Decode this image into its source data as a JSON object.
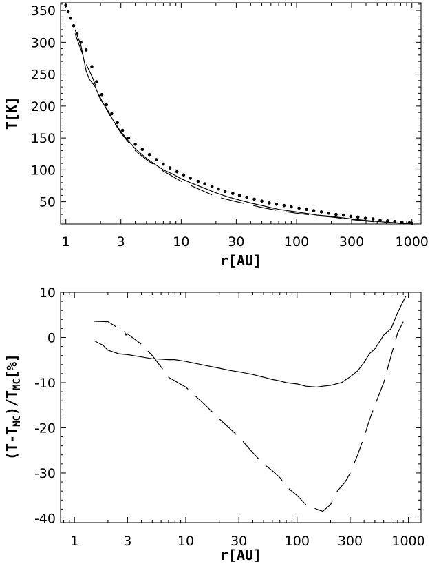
{
  "chart_data": [
    {
      "type": "line",
      "xlabel": "r[AU]",
      "ylabel": "T[K]",
      "xscale": "log",
      "xlim": [
        0.9,
        1200
      ],
      "ylim": [
        15,
        362
      ],
      "xticks": [
        1,
        3,
        10,
        30,
        100,
        300,
        1000
      ],
      "xtick_labels": [
        "1",
        "3",
        "10",
        "30",
        "100",
        "300",
        "1000"
      ],
      "yticks": [
        50,
        100,
        150,
        200,
        250,
        300,
        350
      ],
      "ytick_labels": [
        "50",
        "100",
        "150",
        "200",
        "250",
        "300",
        "350"
      ],
      "grid": false,
      "legend": "none",
      "series": [
        {
          "style": "dotted-markers",
          "x": [
            1.0,
            1.05,
            1.1,
            1.17,
            1.25,
            1.35,
            1.5,
            1.68,
            1.85,
            2.05,
            2.25,
            2.5,
            2.8,
            3.1,
            3.5,
            4.0,
            4.6,
            5.3,
            6.1,
            7.0,
            8.0,
            9.2,
            10.5,
            12,
            14,
            16,
            18.5,
            21,
            24,
            28,
            32,
            37,
            43,
            50,
            58,
            67,
            78,
            90,
            105,
            122,
            141,
            164,
            190,
            220,
            255,
            295,
            340,
            395,
            460,
            530,
            615,
            710,
            820,
            950,
            1000
          ],
          "y": [
            358,
            348,
            338,
            326,
            314,
            300,
            288,
            262,
            238,
            218,
            202,
            188,
            174,
            162,
            150,
            140,
            132,
            124,
            116,
            109,
            103,
            97,
            92,
            87,
            82,
            78,
            74,
            70,
            66,
            63,
            60,
            57,
            54,
            51,
            48,
            46,
            44,
            42,
            40,
            38,
            36,
            34,
            32,
            30,
            29,
            27,
            26,
            24,
            23,
            21,
            20,
            19,
            18,
            17,
            16
          ]
        },
        {
          "style": "solid",
          "x": [
            1.2,
            1.35,
            1.5,
            1.6,
            1.7,
            1.8,
            2.0,
            2.3,
            2.6,
            3.0,
            3.5,
            4.0,
            5.0,
            6.0,
            7.0,
            8.5,
            10,
            12,
            15,
            20,
            25,
            30,
            40,
            50,
            70,
            100,
            150,
            200,
            300,
            500,
            700,
            1000
          ],
          "y": [
            320,
            296,
            255,
            242,
            236,
            230,
            210,
            194,
            176,
            160,
            145,
            133,
            118,
            108,
            100,
            93,
            86,
            80,
            73,
            64,
            58,
            54,
            48,
            44,
            38,
            34,
            29,
            27,
            23,
            19,
            17,
            15
          ]
        },
        {
          "style": "long-dash",
          "x": [
            1.2,
            1.5,
            1.7,
            2.0,
            2.5,
            3.0,
            4.0,
            5.0,
            7.0,
            10,
            15,
            20,
            30,
            50,
            70,
            100,
            150,
            200,
            300,
            500,
            700,
            1000
          ],
          "y": [
            314,
            266,
            245,
            212,
            180,
            158,
            130,
            116,
            98,
            82,
            68,
            58,
            50,
            41,
            36,
            32,
            28,
            26,
            22,
            18,
            17,
            15
          ]
        }
      ]
    },
    {
      "type": "line",
      "xlabel": "r[AU]",
      "ylabel": "(T-T_MC)/T_MC[%]",
      "ylabel_parts": {
        "a": "(T-T",
        "sub1": "MC",
        "b": ")/T",
        "sub2": "MC",
        "c": "[%]"
      },
      "xscale": "log",
      "xlim": [
        0.75,
        1300
      ],
      "ylim": [
        -41,
        10
      ],
      "xticks": [
        1,
        3,
        10,
        30,
        100,
        300,
        1000
      ],
      "xtick_labels": [
        "1",
        "3",
        "10",
        "30",
        "100",
        "300",
        "1000"
      ],
      "yticks": [
        10,
        0,
        -10,
        -20,
        -30,
        -40
      ],
      "ytick_labels": [
        "10",
        "0",
        "-10",
        "-20",
        "-30",
        "-40"
      ],
      "grid": false,
      "legend": "none",
      "series": [
        {
          "style": "solid",
          "x": [
            1.5,
            1.8,
            2.0,
            2.5,
            3.0,
            4.0,
            5.0,
            6.0,
            7.0,
            8.0,
            10,
            12,
            15,
            20,
            25,
            30,
            40,
            50,
            60,
            70,
            80,
            100,
            120,
            150,
            170,
            200,
            250,
            300,
            350,
            400,
            450,
            500,
            600,
            700,
            800,
            950
          ],
          "y": [
            -0.7,
            -1.7,
            -2.8,
            -3.6,
            -3.8,
            -4.3,
            -4.7,
            -4.8,
            -4.9,
            -4.9,
            -5.3,
            -5.7,
            -6.2,
            -6.8,
            -7.3,
            -7.6,
            -8.2,
            -8.8,
            -9.3,
            -9.6,
            -10.0,
            -10.3,
            -10.8,
            -11.0,
            -10.8,
            -10.6,
            -10.0,
            -8.7,
            -7.4,
            -5.5,
            -3.5,
            -2.5,
            0.5,
            2.0,
            5.5,
            9.2
          ]
        },
        {
          "style": "long-dash",
          "x": [
            1.5,
            2.0,
            2.5,
            2.8,
            2.9,
            3.0,
            4.0,
            5.0,
            6.0,
            7.0,
            10,
            15,
            20,
            30,
            40,
            50,
            60,
            70,
            80,
            100,
            120,
            150,
            170,
            200,
            230,
            270,
            300,
            350,
            400,
            450,
            500,
            600,
            700,
            800,
            900
          ],
          "y": [
            3.6,
            3.5,
            2.0,
            1.5,
            0.5,
            0.8,
            -1.5,
            -4.0,
            -6.5,
            -8.8,
            -11.0,
            -15.0,
            -18.0,
            -22.0,
            -25.5,
            -28.0,
            -29.5,
            -31.0,
            -33.0,
            -35.0,
            -37.0,
            -38.0,
            -38.5,
            -37.0,
            -34.0,
            -32.0,
            -30.0,
            -26.0,
            -22.0,
            -18.0,
            -15.0,
            -10.0,
            -4.0,
            1.0,
            3.5
          ]
        }
      ]
    }
  ]
}
